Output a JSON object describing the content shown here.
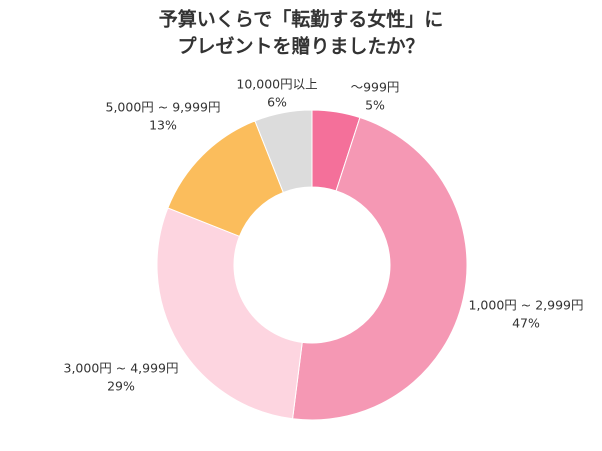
{
  "chart_data": {
    "type": "donut",
    "title": [
      "予算いくらで「転勤する女性」に",
      "プレゼントを贈りましたか？"
    ],
    "categories": [
      "～999円",
      "1,000円 ~ 2,999円",
      "3,000円 ~ 4,999円",
      "5,000円 ~ 9,999円",
      "10,000円以上"
    ],
    "values": [
      5,
      47,
      29,
      13,
      6
    ],
    "value_labels": [
      "5%",
      "47%",
      "29%",
      "13%",
      "6%"
    ],
    "colors": [
      "#f4709a",
      "#f598b4",
      "#fdd5e0",
      "#fbbd5c",
      "#dcdcdc"
    ]
  }
}
